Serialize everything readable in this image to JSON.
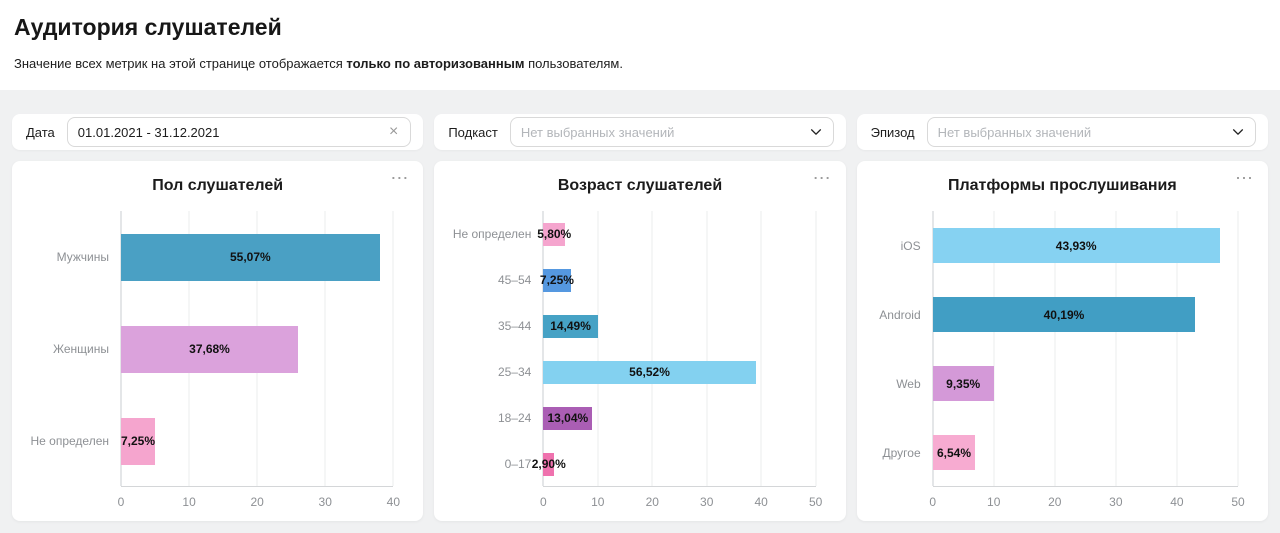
{
  "page": {
    "title": "Аудитория слушателей",
    "subtitle_prefix": "Значение всех метрик на этой странице отображается ",
    "subtitle_bold": "только по авторизованным",
    "subtitle_suffix": " пользователям."
  },
  "icons": {
    "more": "⋯",
    "clear": "×"
  },
  "filters": {
    "date": {
      "label": "Дата",
      "value": "01.01.2021 - 31.12.2021"
    },
    "podcast": {
      "label": "Подкаст",
      "placeholder": "Нет выбранных значений"
    },
    "episode": {
      "label": "Эпизод",
      "placeholder": "Нет выбранных значений"
    }
  },
  "chart_data": [
    {
      "type": "bar",
      "orientation": "horizontal",
      "title": "Пол слушателей",
      "categories": [
        "Мужчины",
        "Женщины",
        "Не определен"
      ],
      "values": [
        55.07,
        37.68,
        7.25
      ],
      "labels": [
        "55,07%",
        "37,68%",
        "7,25%"
      ],
      "counts": [
        38,
        26,
        5
      ],
      "colors": [
        "#4aa0c4",
        "#dba2dc",
        "#f5a5ce"
      ],
      "xlim": [
        0,
        40
      ],
      "xticks": [
        0,
        10,
        20,
        30,
        40
      ],
      "xlabel": "",
      "ylabel": "",
      "grid": "vertical",
      "legend": "none"
    },
    {
      "type": "bar",
      "orientation": "horizontal",
      "title": "Возраст слушателей",
      "categories": [
        "Не определен",
        "45–54",
        "35–44",
        "25–34",
        "18–24",
        "0–17"
      ],
      "values": [
        5.8,
        7.25,
        14.49,
        56.52,
        13.04,
        2.9
      ],
      "labels": [
        "5,80%",
        "7,25%",
        "14,49%",
        "56,52%",
        "13,04%",
        "2,90%"
      ],
      "counts": [
        4,
        5,
        10,
        39,
        9,
        2
      ],
      "colors": [
        "#f5a5ce",
        "#5598e0",
        "#46a2c5",
        "#83d1f0",
        "#aa5eb4",
        "#ef72ae"
      ],
      "xlim": [
        0,
        50
      ],
      "xticks": [
        0,
        10,
        20,
        30,
        40,
        50
      ],
      "xlabel": "",
      "ylabel": "",
      "grid": "vertical",
      "legend": "none"
    },
    {
      "type": "bar",
      "orientation": "horizontal",
      "title": "Платформы прослушивания",
      "categories": [
        "iOS",
        "Android",
        "Web",
        "Другое"
      ],
      "values": [
        43.93,
        40.19,
        9.35,
        6.54
      ],
      "labels": [
        "43,93%",
        "40,19%",
        "9,35%",
        "6,54%"
      ],
      "counts": [
        47,
        43,
        10,
        7
      ],
      "colors": [
        "#86d2f2",
        "#419ec4",
        "#d499d8",
        "#f7abd1"
      ],
      "xlim": [
        0,
        50
      ],
      "xticks": [
        0,
        10,
        20,
        30,
        40,
        50
      ],
      "xlabel": "",
      "ylabel": "",
      "grid": "vertical",
      "legend": "none"
    }
  ]
}
